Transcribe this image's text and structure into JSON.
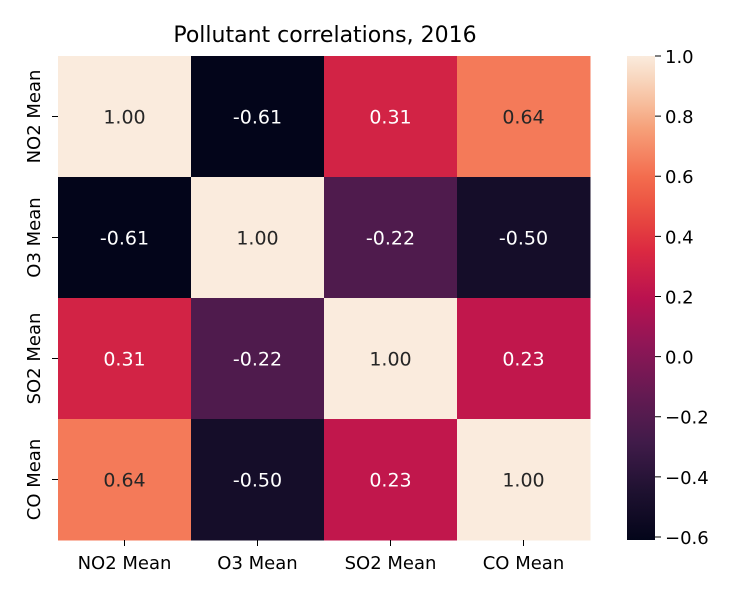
{
  "chart_data": {
    "type": "heatmap",
    "title": "Pollutant correlations, 2016",
    "xlabel": "",
    "ylabel": "",
    "x_categories": [
      "NO2 Mean",
      "O3 Mean",
      "SO2 Mean",
      "CO Mean"
    ],
    "y_categories": [
      "NO2 Mean",
      "O3 Mean",
      "SO2 Mean",
      "CO Mean"
    ],
    "values": [
      [
        1.0,
        -0.61,
        0.31,
        0.64
      ],
      [
        -0.61,
        1.0,
        -0.22,
        -0.5
      ],
      [
        0.31,
        -0.22,
        1.0,
        0.23
      ],
      [
        0.64,
        -0.5,
        0.23,
        1.0
      ]
    ],
    "value_format_decimals": 2,
    "colormap": "rocket",
    "color_range": [
      -0.61,
      1.0
    ],
    "colorbar_ticks": [
      1.0,
      0.8,
      0.6,
      0.4,
      0.2,
      0.0,
      -0.2,
      -0.4,
      -0.6
    ],
    "colorbar_tick_labels": [
      "1.0",
      "0.8",
      "0.6",
      "0.4",
      "0.2",
      "0.0",
      "−0.2",
      "−0.4",
      "−0.6"
    ],
    "grid": false,
    "legend": "colorbar-right"
  }
}
